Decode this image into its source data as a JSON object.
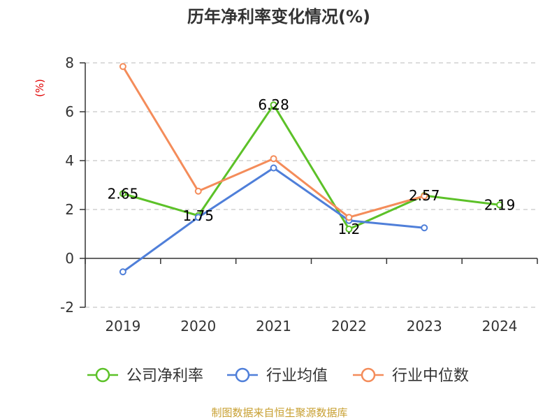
{
  "chart_data": {
    "type": "line",
    "title": "历年净利率变化情况(%)",
    "ylabel": "(%)",
    "categories": [
      "2019",
      "2020",
      "2021",
      "2022",
      "2023",
      "2024"
    ],
    "y_ticks": [
      "8",
      "6",
      "4",
      "2",
      "0",
      "-2"
    ],
    "ylim": [
      -2,
      8
    ],
    "grid": "horizontal dashed",
    "legend_position": "bottom",
    "series": [
      {
        "name": "公司净利率",
        "color": "#5cc128",
        "values": [
          2.65,
          1.75,
          6.28,
          1.2,
          2.57,
          2.19
        ],
        "labels": [
          "2.65",
          "1.75",
          "6.28",
          "1.2",
          "2.57",
          "2.19"
        ]
      },
      {
        "name": "行业均值",
        "color": "#4f7fd9",
        "values": [
          -0.55,
          1.68,
          3.7,
          1.55,
          1.25,
          null
        ]
      },
      {
        "name": "行业中位数",
        "color": "#f48c5a",
        "values": [
          7.85,
          2.75,
          4.08,
          1.68,
          2.55,
          null
        ]
      }
    ],
    "source": "制图数据来自恒生聚源数据库"
  }
}
